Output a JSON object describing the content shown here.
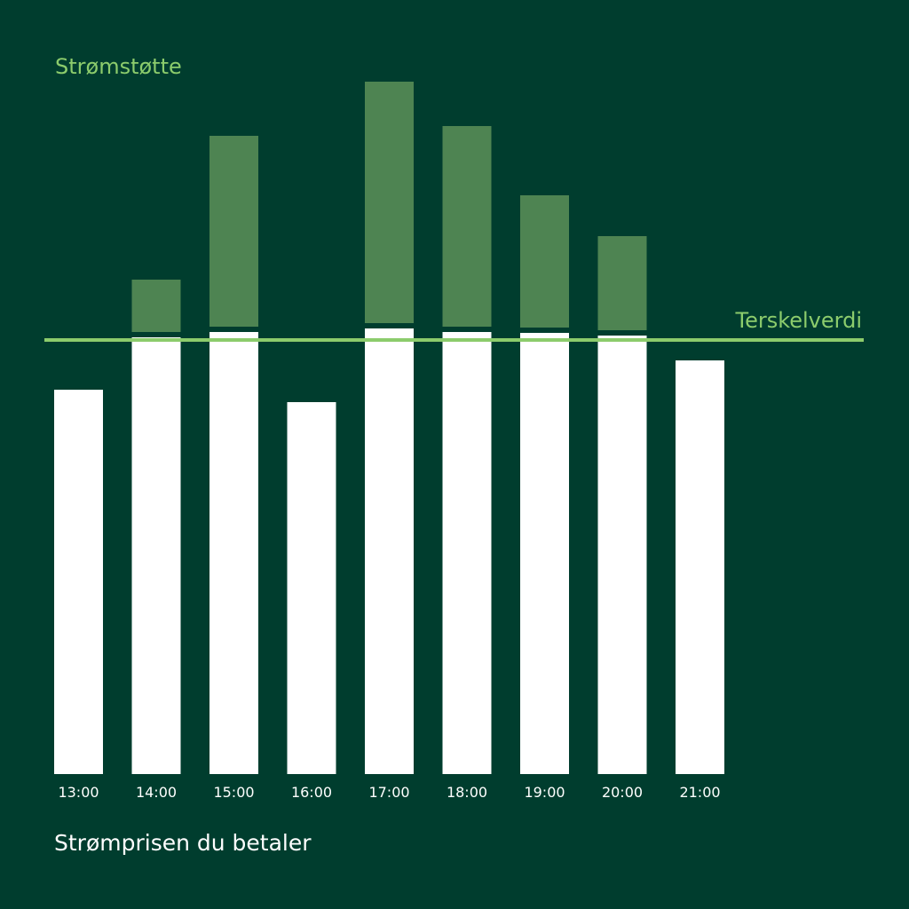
{
  "chart_data": {
    "type": "bar",
    "categories": [
      "13:00",
      "14:00",
      "15:00",
      "16:00",
      "17:00",
      "18:00",
      "19:00",
      "20:00",
      "21:00"
    ],
    "series": [
      {
        "name": "Strømprisen du betaler",
        "values": [
          433,
          492,
          498,
          419,
          502,
          498,
          497,
          494,
          466
        ]
      },
      {
        "name": "Strømstøtte",
        "values": [
          0,
          65,
          221,
          0,
          278,
          232,
          155,
          112,
          0
        ]
      }
    ],
    "threshold": {
      "label": "Terskelverdi",
      "value": 489
    },
    "ylim": [
      0,
      780
    ],
    "stacked": true,
    "grid": false,
    "legend": [
      "top-left",
      "bottom-left"
    ],
    "colors": {
      "background": "#003d2e",
      "paid": "#ffffff",
      "support": "#4e8452",
      "threshold": "#8ccc6c"
    }
  }
}
